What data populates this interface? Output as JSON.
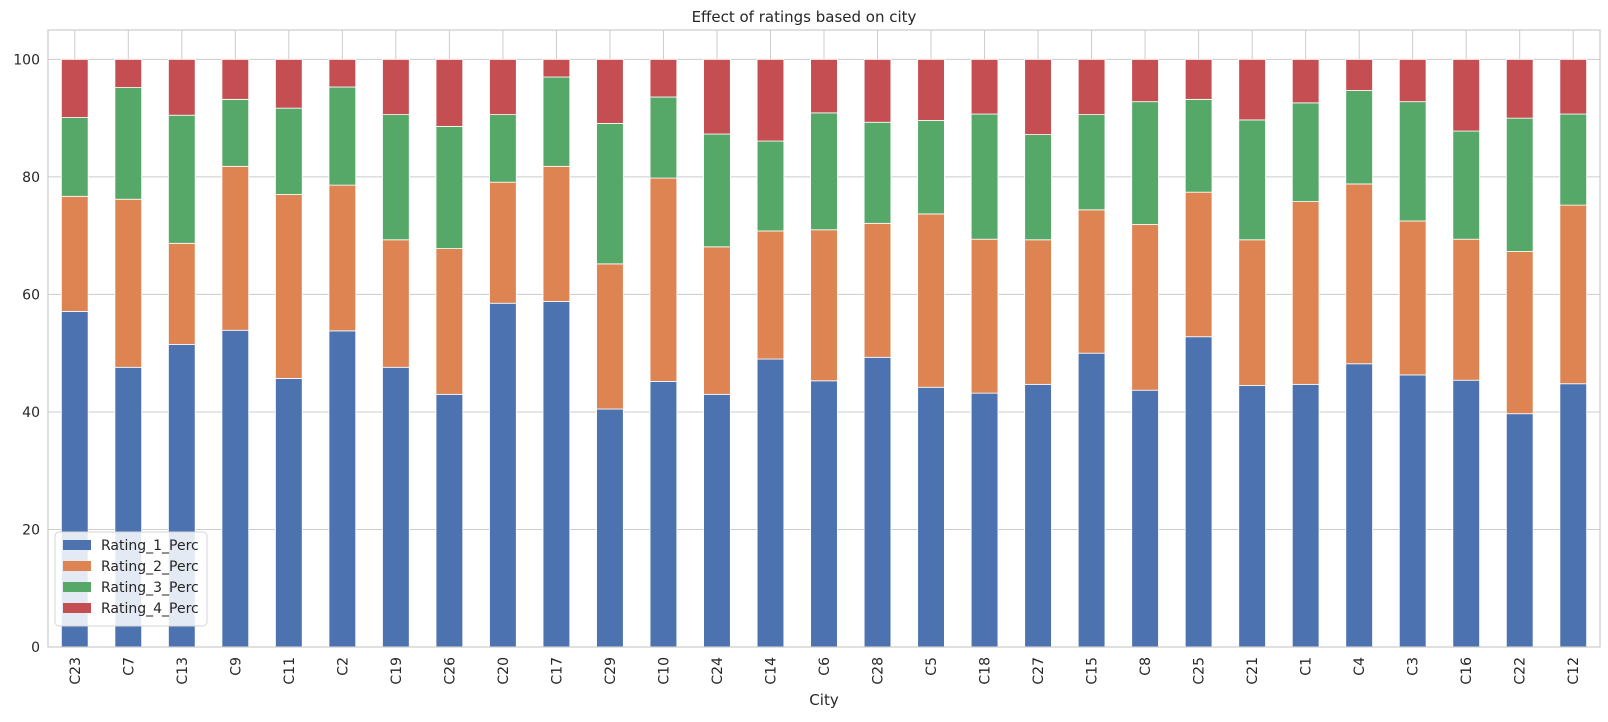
{
  "chart_data": {
    "type": "bar",
    "stacked": true,
    "title": "Effect of ratings based on city",
    "xlabel": "City",
    "ylabel": "",
    "ylim": [
      0,
      105
    ],
    "yticks": [
      0,
      20,
      40,
      60,
      80,
      100
    ],
    "grid": true,
    "legend_position": "lower-left",
    "categories": [
      "C23",
      "C7",
      "C13",
      "C9",
      "C11",
      "C2",
      "C19",
      "C26",
      "C20",
      "C17",
      "C29",
      "C10",
      "C24",
      "C14",
      "C6",
      "C28",
      "C5",
      "C18",
      "C27",
      "C15",
      "C8",
      "C25",
      "C21",
      "C1",
      "C4",
      "C3",
      "C16",
      "C22",
      "C12"
    ],
    "series": [
      {
        "name": "Rating_1_Perc",
        "color": "#4c72b0",
        "values": [
          57.1,
          47.6,
          51.5,
          53.9,
          45.7,
          53.8,
          47.6,
          43.0,
          58.5,
          58.8,
          40.5,
          45.2,
          43.0,
          49.0,
          45.3,
          49.3,
          44.2,
          43.2,
          44.7,
          50.0,
          43.7,
          52.8,
          44.5,
          44.7,
          48.2,
          46.3,
          45.4,
          39.7,
          44.8
        ]
      },
      {
        "name": "Rating_2_Perc",
        "color": "#dd8452",
        "values": [
          19.6,
          28.6,
          17.2,
          27.9,
          31.3,
          24.8,
          21.7,
          24.8,
          20.6,
          23.0,
          24.7,
          34.6,
          25.1,
          21.8,
          25.7,
          22.8,
          29.5,
          26.2,
          24.6,
          24.4,
          28.2,
          24.6,
          24.8,
          31.1,
          30.6,
          26.2,
          24.0,
          27.6,
          30.4
        ]
      },
      {
        "name": "Rating_3_Perc",
        "color": "#55a868",
        "values": [
          13.4,
          19.0,
          21.8,
          11.4,
          14.7,
          16.7,
          21.3,
          20.8,
          11.5,
          15.2,
          23.9,
          13.8,
          19.2,
          15.3,
          19.9,
          17.2,
          15.9,
          21.3,
          17.9,
          16.2,
          20.9,
          15.8,
          20.4,
          16.8,
          15.9,
          20.3,
          18.4,
          22.7,
          15.5
        ]
      },
      {
        "name": "Rating_4_Perc",
        "color": "#c44e52",
        "values": [
          9.9,
          4.8,
          9.5,
          6.8,
          8.3,
          4.7,
          9.4,
          11.4,
          9.4,
          3.0,
          10.9,
          6.4,
          12.7,
          13.9,
          9.1,
          10.7,
          10.4,
          9.3,
          12.8,
          9.4,
          7.2,
          6.8,
          10.3,
          7.4,
          5.3,
          7.2,
          12.2,
          10.0,
          9.3
        ]
      }
    ]
  }
}
